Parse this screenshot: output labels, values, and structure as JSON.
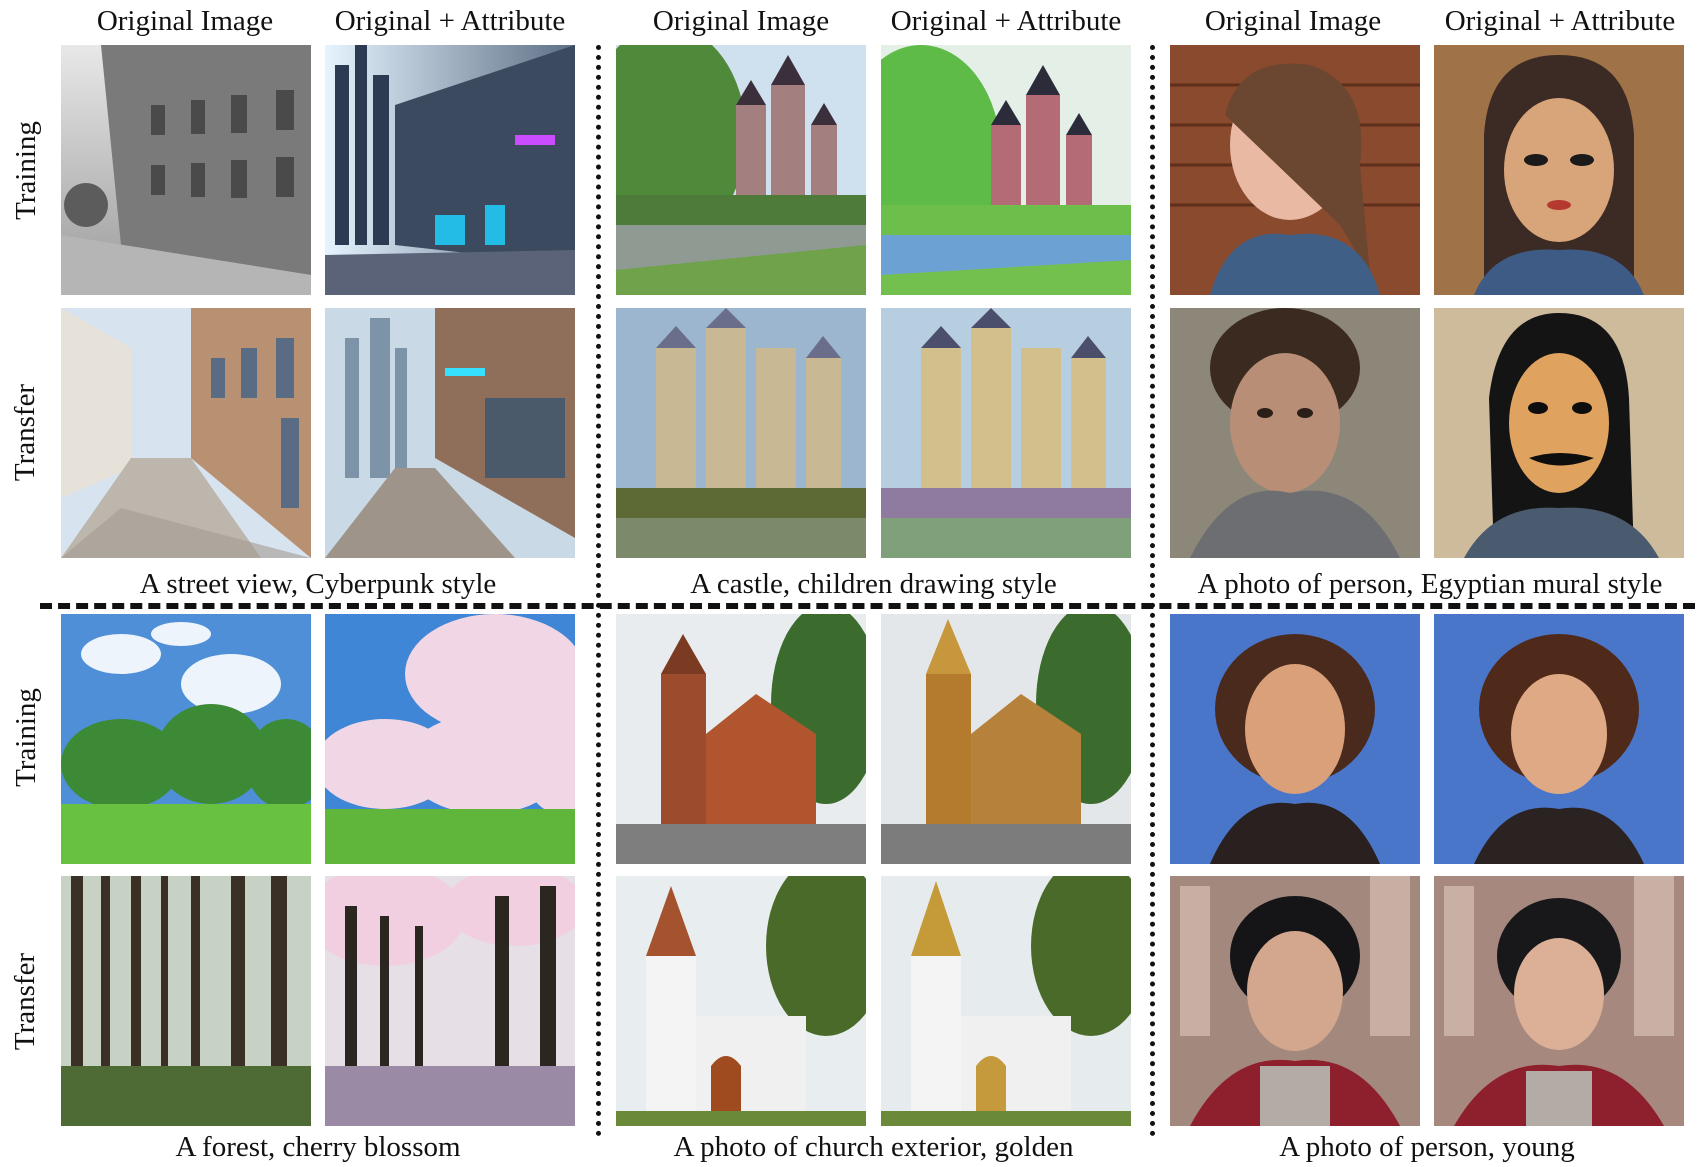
{
  "column_headers": {
    "original": "Original Image",
    "attribute": "Original + Attribute"
  },
  "row_labels": {
    "training": "Training",
    "transfer": "Transfer"
  },
  "captions": {
    "street": "A street view, Cyberpunk style",
    "castle": "A castle, children drawing style",
    "person_mural": "A photo of person, Egyptian mural style",
    "forest": "A forest, cherry blossom",
    "church": "A photo of church exterior, golden",
    "person_young": "A photo of person, young"
  }
}
